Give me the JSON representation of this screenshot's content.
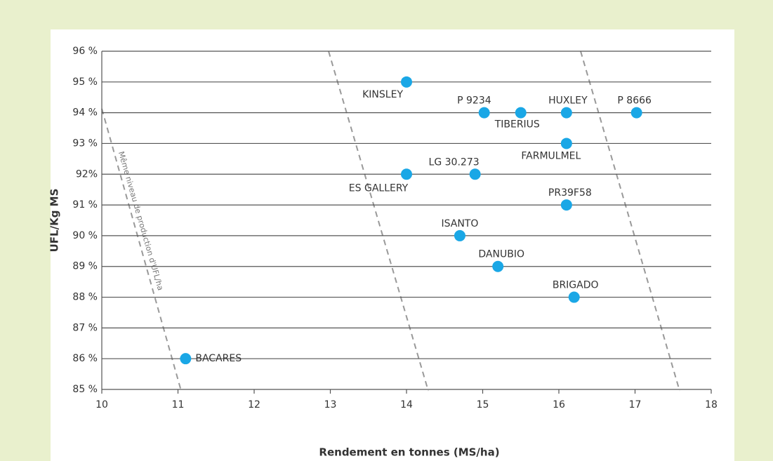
{
  "chart_data": {
    "type": "scatter",
    "xlabel": "Rendement en tonnes (MS/ha)",
    "ylabel": "UFL/Kg MS",
    "annotation": "Même niveau de production d'UFL/ha",
    "color": "#1aa7e6",
    "grid": true,
    "xlim": [
      10,
      18
    ],
    "ylim": [
      85,
      96
    ],
    "xticks": [
      10,
      11,
      12,
      13,
      14,
      15,
      16,
      17,
      18
    ],
    "yticks": [
      {
        "value": 85,
        "label": "85 %"
      },
      {
        "value": 86,
        "label": "86 %"
      },
      {
        "value": 87,
        "label": "87 %"
      },
      {
        "value": 88,
        "label": "88 %"
      },
      {
        "value": 89,
        "label": "89 %"
      },
      {
        "value": 90,
        "label": "90 %"
      },
      {
        "value": 91,
        "label": "91 %"
      },
      {
        "value": 92,
        "label": "92%"
      },
      {
        "value": 93,
        "label": "93 %"
      },
      {
        "value": 94,
        "label": "94 %"
      },
      {
        "value": 95,
        "label": "95 %"
      },
      {
        "value": 96,
        "label": "96 %"
      }
    ],
    "labels": [
      "KINSLEY",
      "P 9234",
      "TIBERIUS",
      "HUXLEY",
      "P 8666",
      "FARMULMEL",
      "LG 30.273",
      "ES GALLERY",
      "PR39F58",
      "ISANTO",
      "DANUBIO",
      "BRIGADO",
      "BACARES"
    ],
    "x": [
      14.0,
      15.02,
      15.5,
      16.1,
      17.02,
      16.1,
      14.9,
      14.0,
      16.1,
      14.7,
      15.2,
      16.2,
      11.1
    ],
    "values": [
      95,
      94,
      94,
      94,
      94,
      93,
      92,
      92,
      91,
      90,
      89,
      88,
      86
    ]
  }
}
